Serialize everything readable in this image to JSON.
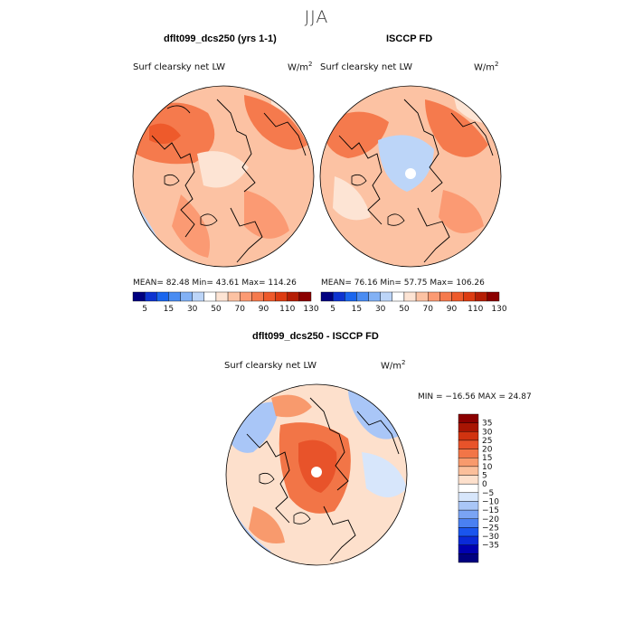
{
  "season_title": "JJA",
  "palette_abs": [
    "#000080",
    "#0d33d0",
    "#1a66ee",
    "#4a8cf2",
    "#82b1f5",
    "#bcd5f8",
    "#ffffff",
    "#fde4d4",
    "#fcc2a3",
    "#fb9a73",
    "#f57a4d",
    "#ee5a2b",
    "#dd3c12",
    "#b51e05",
    "#8b0000"
  ],
  "palette_diff": [
    "#000080",
    "#0000b0",
    "#0a2ad8",
    "#1a55ee",
    "#4a80f2",
    "#7aa4f4",
    "#a9c6f7",
    "#d7e6fb",
    "#ffffff",
    "#fde0cc",
    "#fbbf9b",
    "#f89a6d",
    "#f27547",
    "#e8532a",
    "#d13310",
    "#a81503",
    "#8b0000"
  ],
  "panels": [
    {
      "title": "dflt099_dcs250 (yrs 1-1)",
      "variable": "Surf clearsky net LW",
      "units": "W/m",
      "units_exp": "2",
      "stats": "MEAN=  82.48   Min=  43.61   Max= 114.26"
    },
    {
      "title": "ISCCP FD",
      "variable": "Surf clearsky net LW",
      "units": "W/m",
      "units_exp": "2",
      "stats": "MEAN=  76.16   Min=  57.75   Max= 106.26"
    },
    {
      "title": "dflt099_dcs250 - ISCCP FD",
      "variable": "Surf clearsky net LW",
      "units": "W/m",
      "units_exp": "2",
      "stats": "MIN = −16.56 MAX =  24.87"
    }
  ],
  "chart_data": [
    {
      "type": "heatmap",
      "title": "dflt099_dcs250 (yrs 1-1)",
      "projection": "north polar stereographic",
      "variable": "Surf clearsky net LW",
      "units": "W/m2",
      "mean": 82.48,
      "min": 43.61,
      "max": 114.26,
      "colorbar_levels": [
        5,
        10,
        15,
        20,
        30,
        40,
        50,
        60,
        70,
        80,
        90,
        100,
        110,
        120,
        130
      ],
      "colorbar_tick_labels": [
        "5",
        "15",
        "30",
        "50",
        "70",
        "90",
        "110",
        "130"
      ]
    },
    {
      "type": "heatmap",
      "title": "ISCCP FD",
      "projection": "north polar stereographic",
      "variable": "Surf clearsky net LW",
      "units": "W/m2",
      "mean": 76.16,
      "min": 57.75,
      "max": 106.26,
      "colorbar_levels": [
        5,
        10,
        15,
        20,
        30,
        40,
        50,
        60,
        70,
        80,
        90,
        100,
        110,
        120,
        130
      ],
      "colorbar_tick_labels": [
        "5",
        "15",
        "30",
        "50",
        "70",
        "90",
        "110",
        "130"
      ]
    },
    {
      "type": "heatmap",
      "title": "dflt099_dcs250 - ISCCP FD",
      "projection": "north polar stereographic",
      "variable": "Surf clearsky net LW",
      "units": "W/m2",
      "min": -16.56,
      "max": 24.87,
      "colorbar_tick_labels": [
        "35",
        "30",
        "25",
        "20",
        "15",
        "10",
        "5",
        "0",
        "−5",
        "−10",
        "−15",
        "−20",
        "−25",
        "−30",
        "−35"
      ]
    }
  ]
}
